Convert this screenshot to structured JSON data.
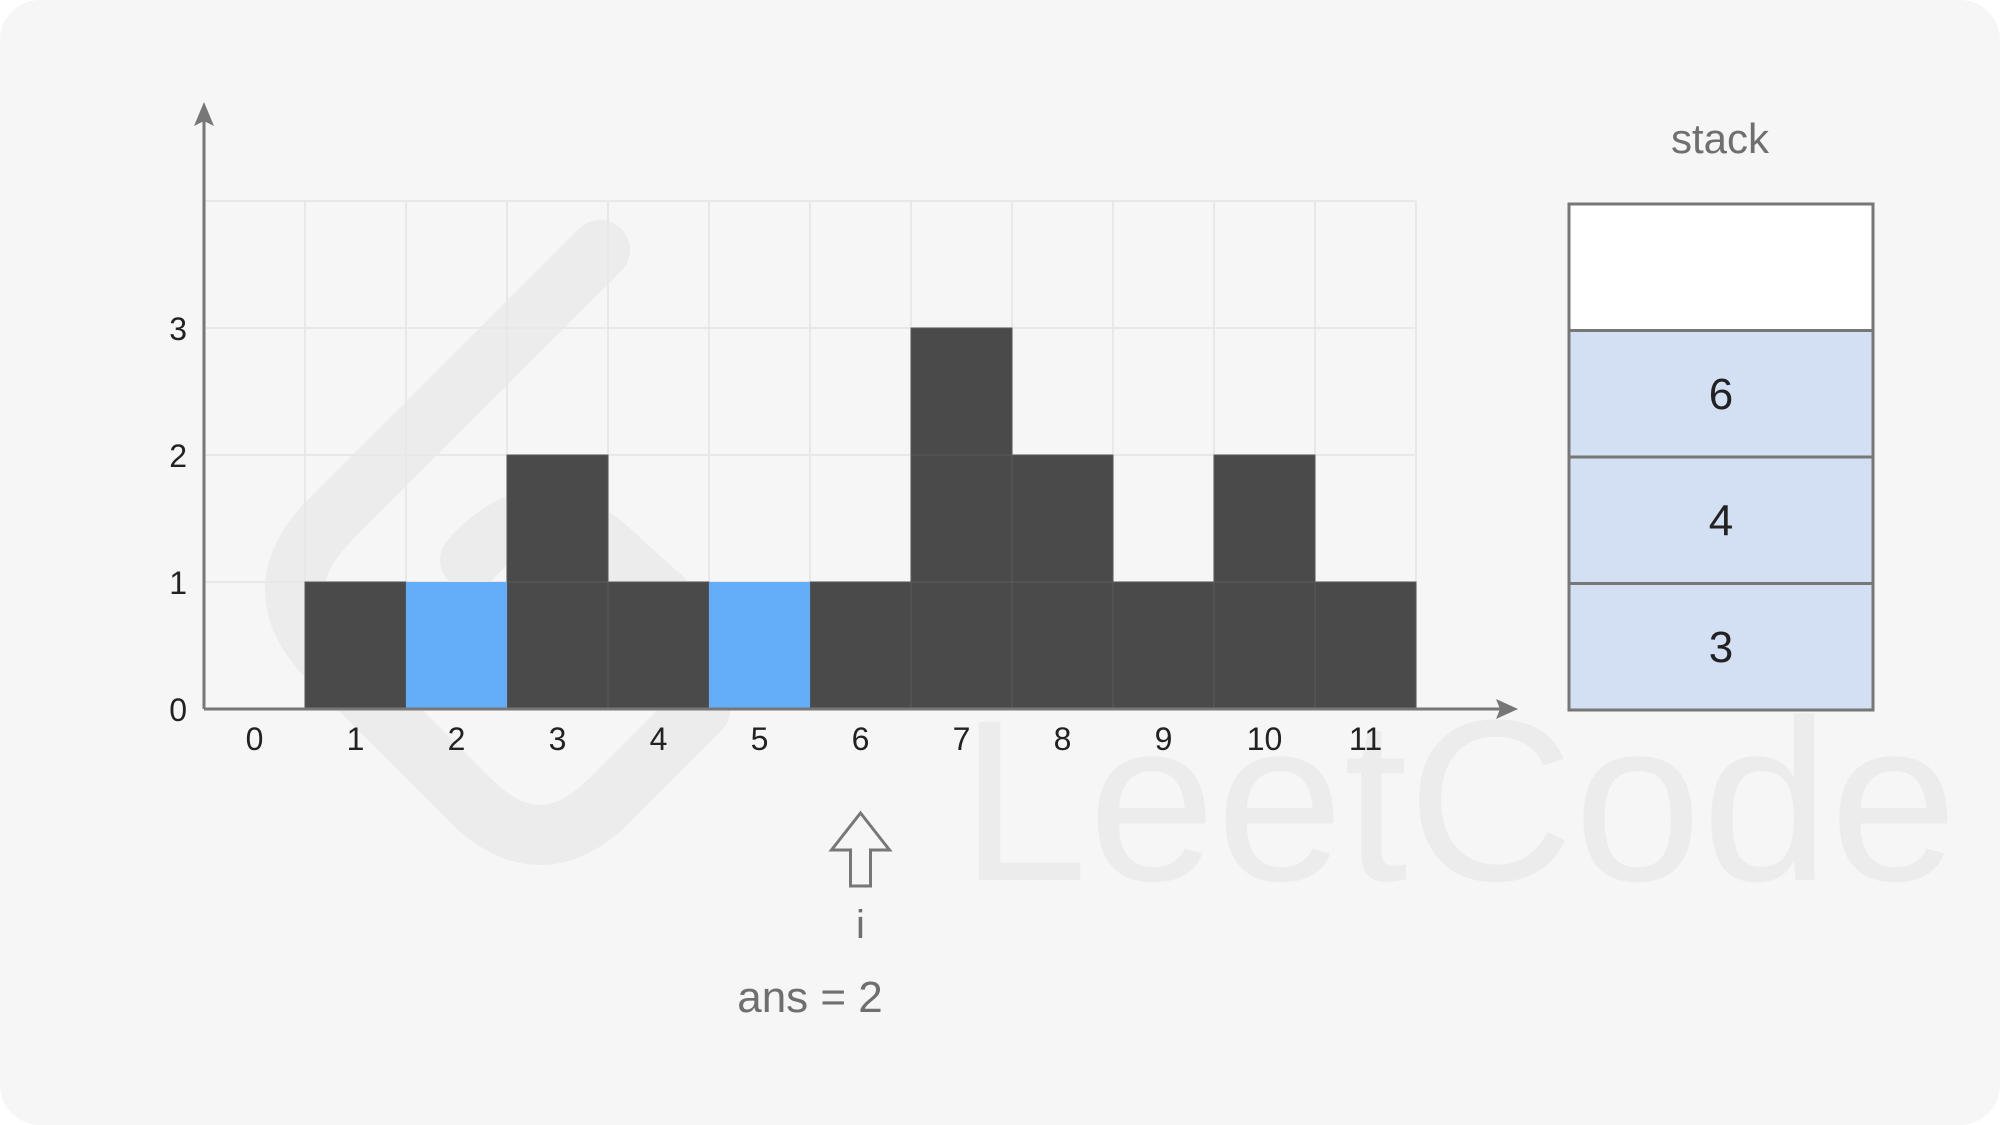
{
  "colors": {
    "background": "#f6f6f6",
    "wall": "#4a4a4a",
    "water": "#63adf9",
    "grid": "#e8e8e8",
    "axis": "#777777",
    "stack_fill": "#d3e0f4",
    "stack_border": "#777777",
    "text_dark": "#222222",
    "text_gray": "#6f6f6f",
    "watermark": "#ececec"
  },
  "chart_data": {
    "type": "bar",
    "x": [
      "0",
      "1",
      "2",
      "3",
      "4",
      "5",
      "6",
      "7",
      "8",
      "9",
      "10",
      "11"
    ],
    "y_ticks": [
      "0",
      "1",
      "2",
      "3"
    ],
    "ylim": [
      0,
      4
    ],
    "heights": [
      0,
      1,
      0,
      2,
      1,
      0,
      1,
      3,
      2,
      1,
      2,
      1
    ],
    "water": [
      {
        "index": 2,
        "from": 0,
        "to": 1
      },
      {
        "index": 5,
        "from": 0,
        "to": 1
      }
    ]
  },
  "pointer": {
    "index": 6,
    "label": "i",
    "icon": "up-arrow-outline-icon"
  },
  "answer": {
    "text": "ans = 2"
  },
  "stack": {
    "title": "stack",
    "capacity": 4,
    "items": [
      "6",
      "4",
      "3"
    ]
  },
  "watermark": {
    "text": "LeetCode",
    "icon": "leetcode-logo-icon"
  }
}
